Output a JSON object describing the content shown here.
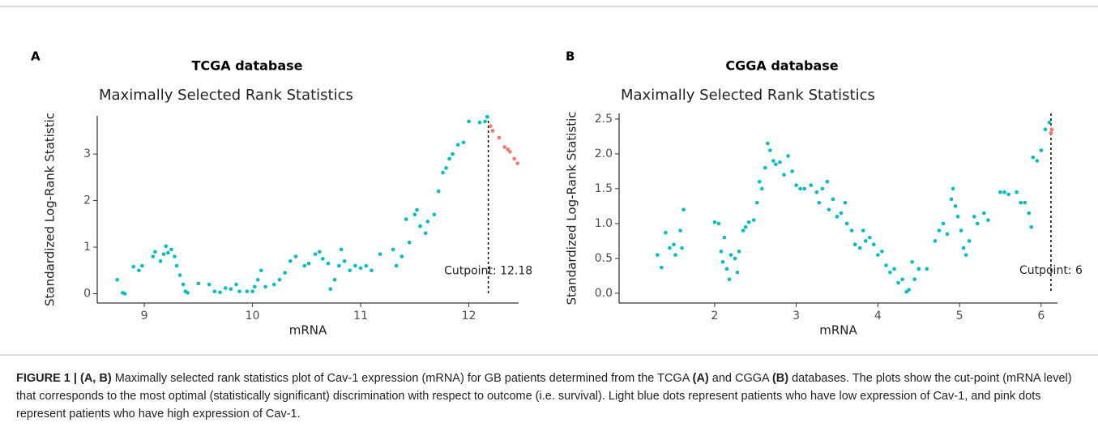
{
  "chart_data": [
    {
      "type": "scatter",
      "panel": "A",
      "title": "TCGA database",
      "subtitle": "Maximally Selected Rank Statistics",
      "x_label": "mRNA",
      "y_label": "Standardized Log-Rank Statistic",
      "xlim": [
        8.565,
        12.46
      ],
      "ylim": [
        -0.2,
        3.82
      ],
      "xticks": [
        9,
        10,
        11,
        12
      ],
      "yticks": [
        0,
        1,
        2,
        3
      ],
      "cutpoint": 12.18,
      "annotation": "Cutpoint: 12.18",
      "series": [
        {
          "color": "#00BFC4",
          "x": [
            8.75,
            8.8,
            8.82,
            8.9,
            8.95,
            8.98,
            9.08,
            9.1,
            9.15,
            9.18,
            9.2,
            9.22,
            9.25,
            9.28,
            9.3,
            9.33,
            9.36,
            9.38,
            9.4,
            9.5,
            9.6,
            9.65,
            9.7,
            9.75,
            9.8,
            9.85,
            9.88,
            9.95,
            10.0,
            10.02,
            10.05,
            10.08,
            10.12,
            10.2,
            10.25,
            10.3,
            10.35,
            10.4,
            10.48,
            10.52,
            10.58,
            10.62,
            10.65,
            10.7,
            10.72,
            10.76,
            10.8,
            10.82,
            10.85,
            10.9,
            10.95,
            11.0,
            11.05,
            11.1,
            11.18,
            11.3,
            11.33,
            11.38,
            11.42,
            11.45,
            11.5,
            11.52,
            11.55,
            11.6,
            11.62,
            11.68,
            11.72,
            11.76,
            11.79,
            11.82,
            11.85,
            11.9,
            11.95,
            12.0,
            12.1,
            12.15,
            12.17
          ],
          "values": [
            0.3,
            0.02,
            0.0,
            0.58,
            0.5,
            0.6,
            0.8,
            0.9,
            0.7,
            0.85,
            1.02,
            0.88,
            0.95,
            0.8,
            0.6,
            0.4,
            0.2,
            0.05,
            0.02,
            0.22,
            0.2,
            0.05,
            0.03,
            0.12,
            0.1,
            0.2,
            0.05,
            0.05,
            0.05,
            0.15,
            0.3,
            0.5,
            0.15,
            0.2,
            0.3,
            0.45,
            0.7,
            0.8,
            0.6,
            0.65,
            0.85,
            0.9,
            0.75,
            0.65,
            0.1,
            0.3,
            0.6,
            0.95,
            0.7,
            0.5,
            0.6,
            0.55,
            0.6,
            0.5,
            0.85,
            0.95,
            0.6,
            0.8,
            1.6,
            1.1,
            1.7,
            1.8,
            1.45,
            1.3,
            1.55,
            1.7,
            2.2,
            2.6,
            2.7,
            2.9,
            3.0,
            3.2,
            3.25,
            3.7,
            3.68,
            3.7,
            3.8
          ]
        },
        {
          "color": "#F8766D",
          "x": [
            12.2,
            12.22,
            12.28,
            12.33,
            12.36,
            12.38,
            12.42,
            12.45
          ],
          "values": [
            3.6,
            3.5,
            3.35,
            3.15,
            3.1,
            3.05,
            2.9,
            2.8
          ]
        }
      ]
    },
    {
      "type": "scatter",
      "panel": "B",
      "title": "CGGA database",
      "subtitle": "Maximally Selected Rank Statistics",
      "x_label": "mRNA",
      "y_label": "Standardized Log-Rank Statistic",
      "xlim": [
        0.83,
        6.2
      ],
      "ylim": [
        -0.14,
        2.58
      ],
      "xticks": [
        2,
        3,
        4,
        5,
        6
      ],
      "yticks": [
        {
          "value": 0,
          "label": "0.0"
        },
        0.5,
        {
          "value": 1,
          "label": "1.0"
        },
        1.5,
        {
          "value": 2,
          "label": "2.0"
        },
        2.5
      ],
      "cutpoint": 6.12,
      "annotation": "Cutpoint: 6",
      "series": [
        {
          "color": "#00BFC4",
          "x": [
            1.3,
            1.35,
            1.4,
            1.45,
            1.5,
            1.52,
            1.58,
            1.6,
            1.62,
            2.0,
            2.05,
            2.08,
            2.1,
            2.12,
            2.15,
            2.18,
            2.2,
            2.25,
            2.28,
            2.3,
            2.35,
            2.38,
            2.42,
            2.48,
            2.52,
            2.55,
            2.58,
            2.62,
            2.65,
            2.68,
            2.72,
            2.75,
            2.8,
            2.85,
            2.9,
            2.95,
            3.0,
            3.05,
            3.1,
            3.18,
            3.25,
            3.28,
            3.32,
            3.38,
            3.4,
            3.45,
            3.5,
            3.55,
            3.6,
            3.62,
            3.68,
            3.72,
            3.78,
            3.82,
            3.85,
            3.9,
            3.95,
            4.0,
            4.05,
            4.1,
            4.15,
            4.2,
            4.25,
            4.3,
            4.35,
            4.38,
            4.42,
            4.45,
            4.5,
            4.6,
            4.7,
            4.75,
            4.8,
            4.85,
            4.9,
            4.92,
            4.95,
            4.98,
            5.02,
            5.05,
            5.08,
            5.12,
            5.18,
            5.22,
            5.3,
            5.35,
            5.5,
            5.55,
            5.6,
            5.7,
            5.75,
            5.8,
            5.85,
            5.88,
            5.9,
            5.95,
            6.0,
            6.05,
            6.1
          ],
          "values": [
            0.55,
            0.37,
            0.87,
            0.65,
            0.7,
            0.55,
            0.9,
            0.65,
            1.2,
            1.02,
            1.0,
            0.6,
            0.45,
            0.8,
            0.35,
            0.2,
            0.55,
            0.5,
            0.3,
            0.6,
            0.9,
            0.95,
            1.02,
            1.05,
            1.3,
            1.6,
            1.5,
            1.8,
            2.15,
            2.05,
            1.9,
            1.85,
            1.88,
            1.7,
            1.97,
            1.75,
            1.55,
            1.5,
            1.5,
            1.55,
            1.45,
            1.3,
            1.5,
            1.6,
            1.2,
            1.35,
            1.1,
            1.15,
            1.3,
            1.0,
            0.9,
            0.7,
            0.65,
            0.9,
            0.75,
            0.8,
            0.7,
            0.55,
            0.6,
            0.4,
            0.3,
            0.35,
            0.15,
            0.2,
            0.02,
            0.05,
            0.45,
            0.2,
            0.35,
            0.35,
            0.75,
            0.9,
            1.0,
            0.85,
            1.35,
            1.5,
            1.25,
            1.1,
            0.9,
            0.65,
            0.55,
            0.75,
            1.1,
            1.0,
            1.15,
            1.05,
            1.45,
            1.45,
            1.42,
            1.45,
            1.3,
            1.3,
            1.15,
            0.95,
            1.95,
            1.9,
            2.05,
            2.35,
            2.45
          ]
        },
        {
          "color": "#F8766D",
          "x": [
            6.12,
            6.13
          ],
          "values": [
            2.3,
            2.35
          ]
        }
      ]
    }
  ],
  "caption": {
    "segments": [
      {
        "text": "FIGURE 1 | ",
        "bold": true
      },
      {
        "text": "(A, B)",
        "bold": true
      },
      {
        "text": " Maximally selected rank statistics plot of Cav-1 expression (mRNA) for GB patients determined from the TCGA ",
        "bold": false
      },
      {
        "text": "(A)",
        "bold": true
      },
      {
        "text": " and CGGA ",
        "bold": false
      },
      {
        "text": "(B)",
        "bold": true
      },
      {
        "text": " databases. The plots show the cut-point (mRNA level) that corresponds to the most optimal (statistically significant) discrimination with respect to outcome (i.e. survival). Light blue dots represent patients who have low expression of Cav-1, and pink dots represent patients who have high expression of Cav-1.",
        "bold": false
      }
    ]
  }
}
